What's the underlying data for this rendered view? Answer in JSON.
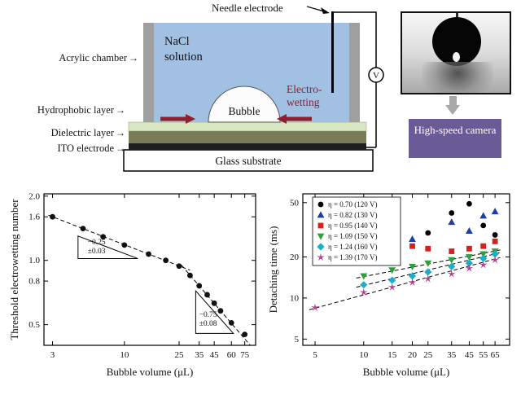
{
  "icons": {
    "arrow_right": "→"
  },
  "colors": {
    "solution": "#a2c0e2",
    "wall": "#9f9f9f",
    "hydrophobic": "#d8e6c2",
    "dielectric": "#7b7b57",
    "ito": "#1f1f1f",
    "electrowetting_red": "#8e1f2c",
    "camera_box": "#6a5a96"
  },
  "schematic": {
    "labels": {
      "needle_electrode": "Needle electrode",
      "acrylic_chamber": "Acrylic chamber",
      "hydrophobic_layer": "Hydrophobic layer",
      "dielectric_layer": "Dielectric layer",
      "ito_electrode": "ITO electrode",
      "nacl_solution": "NaCl solution",
      "bubble": "Bubble",
      "electrowetting": "Electro-wetting",
      "glass_substrate": "Glass substrate",
      "voltmeter": "V",
      "camera": "High-speed camera"
    }
  },
  "chart_data": [
    {
      "type": "scatter",
      "title": "",
      "xlabel": "Bubble volume (μL)",
      "ylabel": "Threshold electrowetting number",
      "xscale": "log",
      "yscale": "log",
      "xlim": [
        2.6,
        90
      ],
      "ylim": [
        0.4,
        2.05
      ],
      "xticks": [
        3,
        10,
        25,
        35,
        45,
        60,
        75
      ],
      "yticks": [
        2.0,
        1.6,
        1.0,
        0.8,
        0.5
      ],
      "ytick_labels": [
        "2.0",
        "1.6",
        "1.0",
        "0.8",
        "0.5"
      ],
      "grid": false,
      "legend": false,
      "series": [
        {
          "name": "threshold electrowetting number",
          "marker": "circle",
          "color": "#111111",
          "x": [
            3,
            5,
            7,
            10,
            15,
            20,
            25,
            30,
            35,
            40,
            45,
            50,
            60,
            75
          ],
          "y": [
            1.6,
            1.41,
            1.29,
            1.18,
            1.07,
            1.0,
            0.94,
            0.85,
            0.76,
            0.69,
            0.63,
            0.58,
            0.51,
            0.45
          ]
        }
      ],
      "fit_lines": [
        {
          "x": [
            2.8,
            30
          ],
          "y": [
            1.628,
            0.9
          ],
          "slope": -0.25
        },
        {
          "x": [
            26,
            82
          ],
          "y": [
            0.95,
            0.401
          ],
          "slope": -0.75
        }
      ],
      "annotations": [
        {
          "type": "slope-triangle",
          "points": [
            [
              4.6,
              1.3
            ],
            [
              4.6,
              1.02
            ],
            [
              12.5,
              1.02
            ]
          ],
          "label": "−0.25",
          "sublabel": "±0.03",
          "text_at": [
            5.4,
            1.19
          ]
        },
        {
          "type": "slope-triangle",
          "points": [
            [
              33,
              0.72
            ],
            [
              33,
              0.455
            ],
            [
              62,
              0.455
            ]
          ],
          "label": "−0.75",
          "sublabel": "±0.08",
          "text_at": [
            35,
            0.545
          ]
        }
      ]
    },
    {
      "type": "scatter",
      "title": "",
      "xlabel": "Bubble volume (μL)",
      "ylabel": "Detaching time (ms)",
      "xscale": "log",
      "yscale": "log",
      "xlim": [
        4.2,
        80
      ],
      "ylim": [
        4.5,
        58
      ],
      "xticks": [
        5,
        10,
        15,
        20,
        25,
        35,
        45,
        55,
        65
      ],
      "yticks": [
        5,
        10,
        20,
        50
      ],
      "ytick_labels": [
        "5",
        "10",
        "20",
        "50"
      ],
      "grid": false,
      "legend": true,
      "legend_position": "top-left",
      "series": [
        {
          "name": "η = 0.70 (120 V)",
          "marker": "circle",
          "color": "#000000",
          "x": [
            25,
            35,
            45,
            55,
            65
          ],
          "y": [
            30,
            42,
            49,
            34,
            29
          ]
        },
        {
          "name": "η = 0.82 (130 V)",
          "marker": "triangle-up",
          "color": "#1f3f9e",
          "x": [
            20,
            35,
            45,
            55,
            65
          ],
          "y": [
            27,
            36,
            31,
            40,
            43
          ]
        },
        {
          "name": "η = 0.95 (140 V)",
          "marker": "square",
          "color": "#d62020",
          "x": [
            15,
            20,
            25,
            35,
            45,
            55,
            65
          ],
          "y": [
            27,
            24,
            23,
            22,
            23,
            24,
            26
          ]
        },
        {
          "name": "η = 1.09 (150 V)",
          "marker": "triangle-down",
          "color": "#2e9e3e",
          "x": [
            10,
            15,
            20,
            25,
            35,
            45,
            55,
            65
          ],
          "y": [
            14.5,
            16,
            17,
            18,
            19,
            20,
            21,
            22
          ]
        },
        {
          "name": "η = 1.24 (160 V)",
          "marker": "diamond",
          "color": "#17b0c8",
          "x": [
            10,
            15,
            20,
            25,
            35,
            45,
            55,
            65
          ],
          "y": [
            12.5,
            13.5,
            14.5,
            15.5,
            17,
            18,
            19.5,
            21
          ]
        },
        {
          "name": "η = 1.39 (170 V)",
          "marker": "star",
          "color": "#b0408e",
          "x": [
            5,
            10,
            15,
            20,
            25,
            35,
            45,
            55,
            65
          ],
          "y": [
            8.5,
            11,
            12,
            13,
            13.8,
            15,
            16.5,
            17.5,
            19
          ]
        }
      ],
      "fit_lines": [
        {
          "x": [
            9,
            70
          ],
          "y": [
            14,
            22.5
          ]
        },
        {
          "x": [
            9,
            70
          ],
          "y": [
            12,
            21.5
          ]
        },
        {
          "x": [
            4.6,
            70
          ],
          "y": [
            8.2,
            19.8
          ]
        }
      ]
    }
  ]
}
